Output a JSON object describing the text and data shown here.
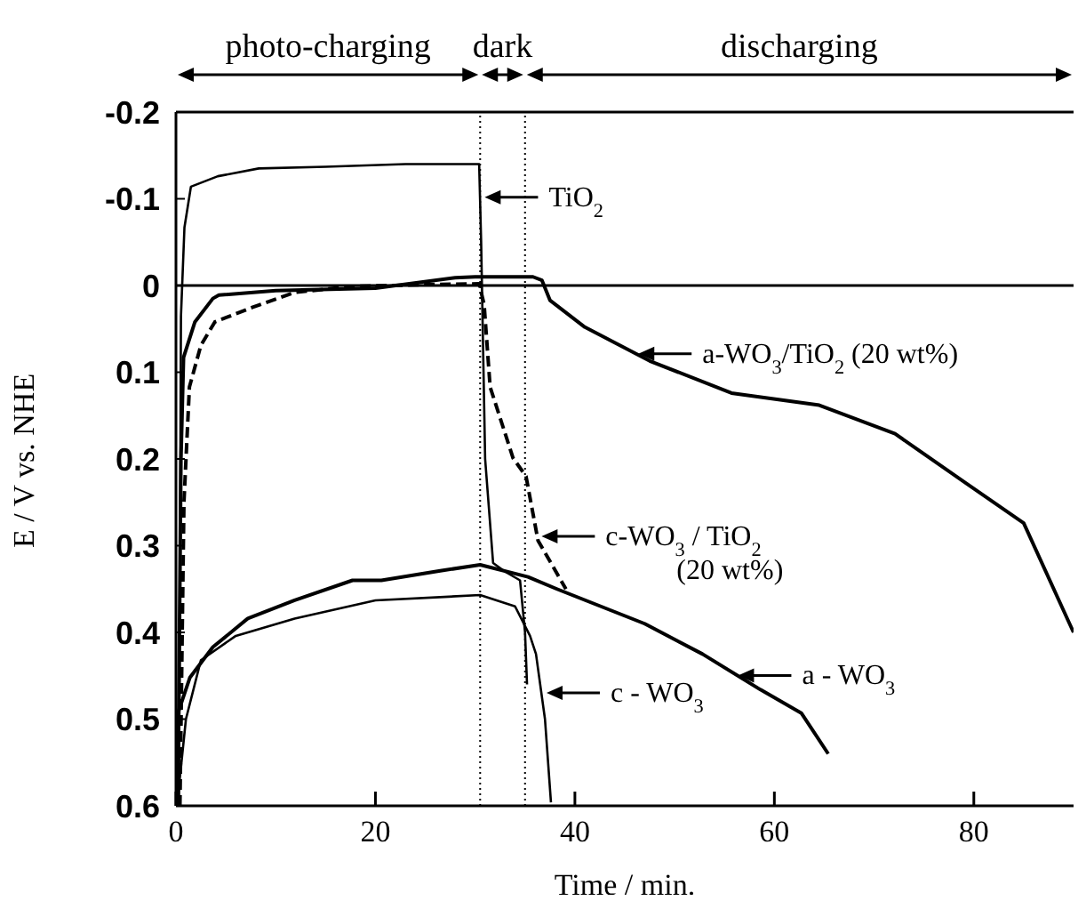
{
  "chart_data": {
    "type": "line",
    "xlabel": "Time / min.",
    "ylabel": "E / V vs. NHE",
    "xlim": [
      0,
      90
    ],
    "xticks": [
      0,
      20,
      40,
      60,
      80
    ],
    "ylim": [
      0.6,
      -0.2
    ],
    "yticks": [
      -0.2,
      -0.1,
      0,
      0.1,
      0.2,
      0.3,
      0.4,
      0.5,
      0.6
    ],
    "grid": false,
    "legend": false,
    "marker": "none",
    "series": [
      {
        "color": "#000000",
        "line_style": "solid",
        "x": [
          0.3,
          0.5,
          0.85,
          1.5,
          4.2,
          8.3,
          15,
          23,
          30.4,
          30.6,
          31,
          31.8,
          33,
          34.5,
          35,
          35.2
        ],
        "values": [
          0.6,
          0.036,
          -0.067,
          -0.114,
          -0.126,
          -0.135,
          -0.137,
          -0.14,
          -0.14,
          -0.05,
          0.2,
          0.32,
          0.33,
          0.34,
          0.4,
          0.46
        ]
      },
      {
        "color": "#000000",
        "line_style": "solid",
        "x": [
          0.2,
          0.5,
          0.76,
          1.9,
          3.7,
          4.3,
          10,
          20,
          28,
          30,
          35,
          35.8,
          36.7,
          37.5,
          41,
          47.5,
          55.7,
          64.5,
          72.1,
          79.1,
          85,
          89.6,
          90
        ],
        "values": [
          0.6,
          0.2,
          0.083,
          0.042,
          0.015,
          0.011,
          0.006,
          0.003,
          -0.009,
          -0.01,
          -0.01,
          -0.01,
          -0.006,
          0.017,
          0.048,
          0.087,
          0.124,
          0.138,
          0.171,
          0.227,
          0.274,
          0.39,
          0.4
        ]
      },
      {
        "color": "#000000",
        "line_style": "dashed",
        "x": [
          0.4,
          0.8,
          1.35,
          2.5,
          3.9,
          7.7,
          11.9,
          17.7,
          25,
          30.4,
          30.9,
          31.5,
          33.8,
          35.1,
          36.3,
          39.1
        ],
        "values": [
          0.6,
          0.25,
          0.117,
          0.069,
          0.042,
          0.025,
          0.008,
          0.001,
          -0.001,
          -0.002,
          0.022,
          0.117,
          0.199,
          0.22,
          0.294,
          0.35
        ]
      },
      {
        "color": "#000000",
        "line_style": "solid",
        "x": [
          0,
          0.2,
          1.4,
          3.7,
          7.2,
          11.9,
          17.7,
          20.6,
          26.5,
          30.5,
          35.3,
          38.2,
          47,
          52.8,
          58.6,
          62.7,
          65.4
        ],
        "values": [
          0.6,
          0.493,
          0.452,
          0.417,
          0.384,
          0.363,
          0.34,
          0.34,
          0.329,
          0.322,
          0.336,
          0.35,
          0.39,
          0.425,
          0.466,
          0.493,
          0.54
        ]
      },
      {
        "color": "#000000",
        "line_style": "solid",
        "x": [
          0.1,
          1,
          2.5,
          6,
          11.9,
          20,
          30.5,
          34,
          35.5,
          36.1,
          37,
          37.6
        ],
        "values": [
          0.6,
          0.5,
          0.432,
          0.404,
          0.384,
          0.363,
          0.357,
          0.37,
          0.404,
          0.425,
          0.5,
          0.596
        ]
      }
    ],
    "ref_lines": [
      {
        "axis": "y",
        "value": 0,
        "line_style": "solid"
      },
      {
        "axis": "x",
        "value": 30.5,
        "line_style": "dotted"
      },
      {
        "axis": "x",
        "value": 35,
        "line_style": "dotted"
      }
    ],
    "annotations": [
      "photo-charging",
      "dark",
      "discharging",
      {
        "text": "TiO$_{2}$",
        "x": 30.6,
        "y": -0.1
      },
      {
        "text": "a-WO$_{3}$/TiO$_{2}$ (20 wt%)",
        "x": 46,
        "y": 0.08
      },
      {
        "text": "c-WO$_{3}$ / TiO$_{2}$\n(20 wt%)",
        "x": 36.3,
        "y": 0.29
      },
      {
        "text": "a - WO$_{3}$",
        "x": 56,
        "y": 0.45
      },
      {
        "text": "c - WO$_{3}$",
        "x": 36.8,
        "y": 0.47
      }
    ]
  }
}
